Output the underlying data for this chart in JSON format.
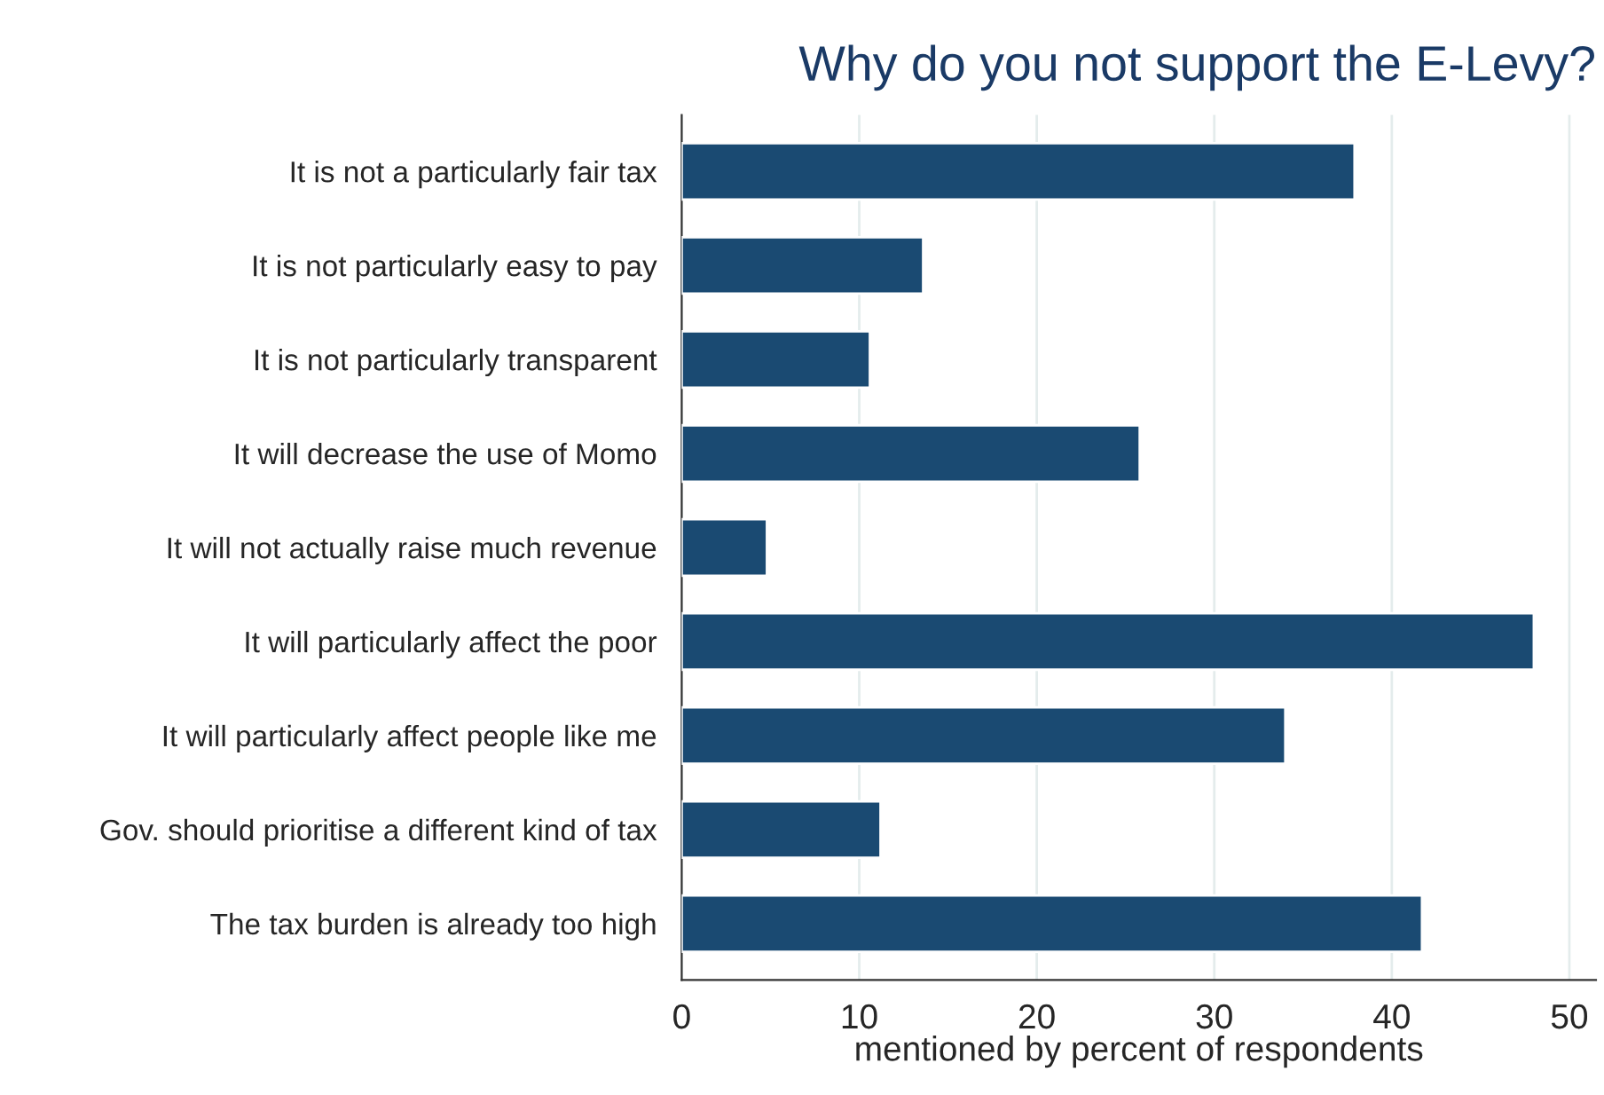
{
  "chart_data": {
    "type": "bar",
    "orientation": "horizontal",
    "title": "Why do you not support the E-Levy?",
    "xlabel": "mentioned by percent of respondents",
    "categories": [
      "It is not a particularly fair tax",
      "It is not particularly easy to pay",
      "It is not particularly transparent",
      "It will decrease the use of Momo",
      "It will not actually raise much revenue",
      "It will particularly affect the poor",
      "It will particularly affect people like me",
      "Gov. should prioritise a different kind of tax",
      "The tax burden is already too high"
    ],
    "values": [
      37.9,
      13.6,
      10.6,
      25.8,
      4.8,
      48,
      34,
      11.2,
      41.7
    ],
    "color": "#1a4a72",
    "xlim": [
      0,
      51.5
    ],
    "xticks": [
      0,
      10,
      20,
      30,
      40,
      50
    ],
    "grid": "x"
  }
}
